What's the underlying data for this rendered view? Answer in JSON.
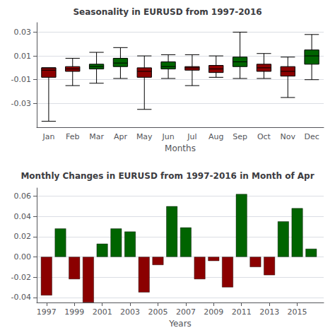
{
  "chart_data": [
    {
      "type": "box",
      "title": "Seasonality in EURUSD from 1997-2016",
      "xlabel": "Months",
      "categories": [
        "Jan",
        "Feb",
        "Mar",
        "Apr",
        "May",
        "Jun",
        "Jul",
        "Aug",
        "Sep",
        "Oct",
        "Nov",
        "Dec"
      ],
      "values": [
        {
          "whisker_low": -0.045,
          "q1": -0.008,
          "median": -0.002,
          "q3": 0.0,
          "whisker_high": 0.0
        },
        {
          "whisker_low": -0.015,
          "q1": -0.003,
          "median": -0.001,
          "q3": 0.001,
          "whisker_high": 0.008
        },
        {
          "whisker_low": -0.013,
          "q1": -0.001,
          "median": 0.001,
          "q3": 0.003,
          "whisker_high": 0.013
        },
        {
          "whisker_low": -0.009,
          "q1": 0.001,
          "median": 0.004,
          "q3": 0.008,
          "whisker_high": 0.017
        },
        {
          "whisker_low": -0.035,
          "q1": -0.008,
          "median": -0.003,
          "q3": 0.0,
          "whisker_high": 0.01
        },
        {
          "whisker_low": -0.009,
          "q1": -0.001,
          "median": 0.001,
          "q3": 0.005,
          "whisker_high": 0.011
        },
        {
          "whisker_low": -0.015,
          "q1": -0.002,
          "median": 0.0,
          "q3": 0.001,
          "whisker_high": 0.011
        },
        {
          "whisker_low": -0.008,
          "q1": -0.004,
          "median": -0.001,
          "q3": 0.002,
          "whisker_high": 0.01
        },
        {
          "whisker_low": -0.009,
          "q1": 0.001,
          "median": 0.005,
          "q3": 0.009,
          "whisker_high": 0.03
        },
        {
          "whisker_low": -0.009,
          "q1": -0.003,
          "median": 0.0,
          "q3": 0.003,
          "whisker_high": 0.012
        },
        {
          "whisker_low": -0.025,
          "q1": -0.007,
          "median": -0.003,
          "q3": 0.001,
          "whisker_high": 0.009
        },
        {
          "whisker_low": -0.01,
          "q1": 0.003,
          "median": 0.01,
          "q3": 0.015,
          "whisker_high": 0.028
        }
      ],
      "colors": [
        "#8B0000",
        "#8B0000",
        "#006400",
        "#006400",
        "#8B0000",
        "#006400",
        "#8B0000",
        "#8B0000",
        "#006400",
        "#8B0000",
        "#8B0000",
        "#006400"
      ],
      "ylim": [
        -0.05,
        0.038
      ],
      "yticks": [
        -0.03,
        -0.01,
        0.01,
        0.03
      ],
      "grid": true
    },
    {
      "type": "bar",
      "title": "Monthly Changes in EURUSD from 1997-2016 in Month of Apr",
      "xlabel": "Years",
      "x": [
        1997,
        1998,
        1999,
        2000,
        2001,
        2002,
        2003,
        2004,
        2005,
        2006,
        2007,
        2008,
        2009,
        2010,
        2011,
        2012,
        2013,
        2014,
        2015,
        2016
      ],
      "values": [
        -0.038,
        0.028,
        -0.022,
        -0.045,
        0.013,
        0.028,
        0.025,
        -0.035,
        -0.008,
        0.05,
        0.029,
        -0.022,
        -0.004,
        -0.03,
        0.062,
        -0.01,
        -0.018,
        0.035,
        0.048,
        0.008
      ],
      "colors": [
        "#8B0000",
        "#006400",
        "#8B0000",
        "#8B0000",
        "#006400",
        "#006400",
        "#006400",
        "#8B0000",
        "#8B0000",
        "#006400",
        "#006400",
        "#8B0000",
        "#8B0000",
        "#8B0000",
        "#006400",
        "#8B0000",
        "#8B0000",
        "#006400",
        "#006400",
        "#006400"
      ],
      "xlim": [
        1996.3,
        2016.9
      ],
      "xticks": [
        1997,
        1999,
        2001,
        2003,
        2005,
        2007,
        2009,
        2011,
        2013,
        2015
      ],
      "ylim": [
        -0.045,
        0.068
      ],
      "yticks": [
        -0.04,
        -0.02,
        {
          "value": 0,
          "label": "0.00"
        },
        0.02,
        0.04,
        0.06
      ],
      "grid": true
    }
  ]
}
